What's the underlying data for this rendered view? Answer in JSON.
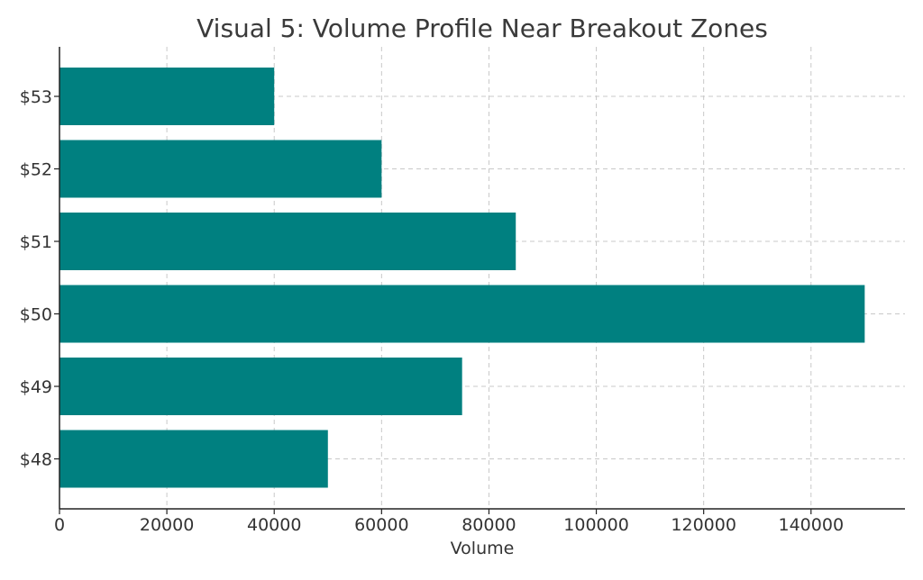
{
  "chart_data": {
    "type": "bar",
    "orientation": "horizontal",
    "title": "Visual 5: Volume Profile Near Breakout Zones",
    "xlabel": "Volume",
    "ylabel": "",
    "categories": [
      "$48",
      "$49",
      "$50",
      "$51",
      "$52",
      "$53"
    ],
    "values": [
      50000,
      75000,
      150000,
      85000,
      60000,
      40000
    ],
    "xlim": [
      0,
      157500
    ],
    "xticks": [
      0,
      20000,
      40000,
      60000,
      80000,
      100000,
      120000,
      140000
    ],
    "xtick_labels": [
      "0",
      "20000",
      "40000",
      "60000",
      "80000",
      "100000",
      "120000",
      "140000"
    ],
    "grid": true,
    "bar_color": "#008080"
  }
}
